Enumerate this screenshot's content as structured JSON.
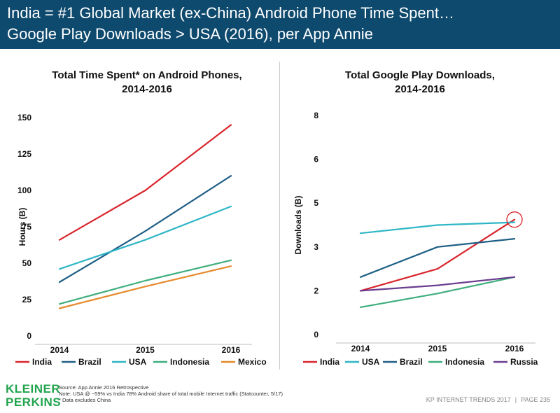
{
  "header": {
    "title_line1": "India = #1 Global Market (ex-China) Android Phone Time Spent…",
    "title_line2": "Google Play Downloads > USA (2016), per App Annie"
  },
  "colors": {
    "header_bg": "#0e4a6e",
    "India": "#d9242b",
    "Brazil": "#1f5f86",
    "USA": "#2eb6c6",
    "Indonesia": "#3fae7c",
    "Mexico": "#e58a2a",
    "Russia": "#6a3d8f",
    "brand_green": "#22a34d"
  },
  "chart_data": [
    {
      "type": "line",
      "title": "Total Time Spent* on Android Phones, 2014-2016",
      "title_lines": [
        "Total Time Spent* on Android Phones,",
        "2014-2016"
      ],
      "xlabel": "",
      "ylabel": "Hours (B)",
      "x": [
        "2014",
        "2015",
        "2016"
      ],
      "ylim": [
        0,
        150
      ],
      "yticks": [
        0,
        25,
        50,
        75,
        100,
        125,
        150
      ],
      "grid": false,
      "legend": "bottom",
      "series": [
        {
          "name": "India",
          "values": [
            66,
            100,
            145
          ]
        },
        {
          "name": "Brazil",
          "values": [
            37,
            72,
            110
          ]
        },
        {
          "name": "USA",
          "values": [
            46,
            66,
            89
          ]
        },
        {
          "name": "Indonesia",
          "values": [
            22,
            38,
            52
          ]
        },
        {
          "name": "Mexico",
          "values": [
            19,
            34,
            48
          ]
        }
      ]
    },
    {
      "type": "line",
      "title": "Total Google Play Downloads, 2014-2016",
      "title_lines": [
        "Total Google Play Downloads,",
        "2014-2016"
      ],
      "xlabel": "",
      "ylabel": "Downloads (B)",
      "x": [
        "2014",
        "2015",
        "2016"
      ],
      "ylim": [
        0,
        8
      ],
      "ytick_labels": [
        "0",
        "2",
        "3",
        "5",
        "6",
        "8"
      ],
      "grid": false,
      "legend": "bottom",
      "highlight": {
        "series": "India",
        "x": "2016"
      },
      "series": [
        {
          "name": "India",
          "values": [
            1.6,
            2.4,
            4.2
          ]
        },
        {
          "name": "USA",
          "values": [
            3.7,
            4.0,
            4.1
          ]
        },
        {
          "name": "Brazil",
          "values": [
            2.1,
            3.2,
            3.5
          ]
        },
        {
          "name": "Indonesia",
          "values": [
            1.0,
            1.5,
            2.1
          ]
        },
        {
          "name": "Russia",
          "values": [
            1.6,
            1.8,
            2.1
          ]
        }
      ]
    }
  ],
  "footer": {
    "logo_line1": "KLEINER",
    "logo_line2": "PERKINS",
    "source": "Source: App Annie 2016 Retrospective",
    "note": "Note: USA @ ~59% vs India 78% Android share of total mobile Internet traffic (Statcounter, 5/17)",
    "data_note": "* Data excludes China",
    "report": "KP INTERNET TRENDS 2017",
    "separator": "|",
    "page": "PAGE 235"
  }
}
